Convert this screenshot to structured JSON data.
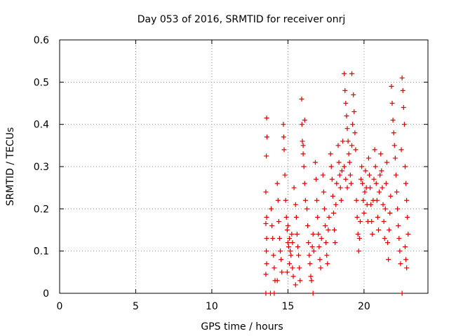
{
  "chart_data": {
    "type": "scatter",
    "title": "Day 053 of 2016, SRMTID for receiver onrj",
    "xlabel": "GPS time / hours",
    "ylabel": "SRMTID / TECUs",
    "xlim": [
      0,
      24.2
    ],
    "ylim": [
      0,
      0.6
    ],
    "x_ticks": [
      0,
      5,
      10,
      15,
      20
    ],
    "x_tick_labels": [
      "0",
      "5",
      "10",
      "15",
      "20"
    ],
    "y_ticks": [
      0,
      0.1,
      0.2,
      0.3,
      0.4,
      0.5,
      0.6
    ],
    "y_tick_labels": [
      "0",
      "0.1",
      "0.2",
      "0.3",
      "0.4",
      "0.5",
      "0.6"
    ],
    "grid": true,
    "marker": "+",
    "color": "#dd0000",
    "series": [
      {
        "name": "SRMTID",
        "points": [
          [
            13.55,
            0.0
          ],
          [
            13.85,
            0.0
          ],
          [
            14.1,
            0.0
          ],
          [
            16.65,
            0.0
          ],
          [
            22.5,
            0.0
          ],
          [
            13.6,
            0.415
          ],
          [
            13.62,
            0.37
          ],
          [
            13.58,
            0.325
          ],
          [
            13.55,
            0.24
          ],
          [
            13.6,
            0.18
          ],
          [
            13.55,
            0.165
          ],
          [
            13.6,
            0.13
          ],
          [
            13.58,
            0.1
          ],
          [
            13.6,
            0.07
          ],
          [
            13.55,
            0.045
          ],
          [
            13.9,
            0.2
          ],
          [
            13.95,
            0.16
          ],
          [
            14.0,
            0.13
          ],
          [
            14.05,
            0.09
          ],
          [
            14.1,
            0.06
          ],
          [
            14.15,
            0.03
          ],
          [
            14.3,
            0.26
          ],
          [
            14.35,
            0.22
          ],
          [
            14.4,
            0.17
          ],
          [
            14.45,
            0.13
          ],
          [
            14.5,
            0.1
          ],
          [
            14.55,
            0.08
          ],
          [
            14.6,
            0.05
          ],
          [
            14.3,
            0.03
          ],
          [
            14.7,
            0.4
          ],
          [
            14.72,
            0.37
          ],
          [
            14.75,
            0.34
          ],
          [
            14.8,
            0.28
          ],
          [
            14.85,
            0.22
          ],
          [
            14.9,
            0.18
          ],
          [
            14.95,
            0.15
          ],
          [
            15.0,
            0.12
          ],
          [
            15.05,
            0.11
          ],
          [
            15.1,
            0.13
          ],
          [
            15.15,
            0.1
          ],
          [
            15.2,
            0.09
          ],
          [
            15.25,
            0.14
          ],
          [
            15.3,
            0.06
          ],
          [
            15.35,
            0.04
          ],
          [
            15.1,
            0.07
          ],
          [
            14.95,
            0.05
          ],
          [
            15.3,
            0.12
          ],
          [
            15.0,
            0.16
          ],
          [
            15.4,
            0.25
          ],
          [
            15.5,
            0.21
          ],
          [
            15.55,
            0.18
          ],
          [
            15.6,
            0.14
          ],
          [
            15.65,
            0.11
          ],
          [
            15.7,
            0.09
          ],
          [
            15.75,
            0.06
          ],
          [
            15.8,
            0.03
          ],
          [
            15.5,
            0.02
          ],
          [
            15.9,
            0.46
          ],
          [
            15.92,
            0.4
          ],
          [
            15.95,
            0.36
          ],
          [
            16.0,
            0.33
          ],
          [
            16.05,
            0.3
          ],
          [
            16.1,
            0.26
          ],
          [
            16.15,
            0.22
          ],
          [
            16.0,
            0.35
          ],
          [
            16.1,
            0.41
          ],
          [
            16.25,
            0.2
          ],
          [
            16.3,
            0.16
          ],
          [
            16.35,
            0.12
          ],
          [
            16.4,
            0.09
          ],
          [
            16.45,
            0.07
          ],
          [
            16.5,
            0.04
          ],
          [
            16.55,
            0.03
          ],
          [
            16.6,
            0.11
          ],
          [
            16.65,
            0.14
          ],
          [
            16.7,
            0.1
          ],
          [
            16.8,
            0.31
          ],
          [
            16.85,
            0.27
          ],
          [
            16.9,
            0.22
          ],
          [
            16.95,
            0.18
          ],
          [
            17.0,
            0.14
          ],
          [
            17.05,
            0.11
          ],
          [
            17.1,
            0.08
          ],
          [
            17.15,
            0.06
          ],
          [
            17.2,
            0.13
          ],
          [
            17.3,
            0.28
          ],
          [
            17.35,
            0.24
          ],
          [
            17.4,
            0.2
          ],
          [
            17.45,
            0.16
          ],
          [
            17.5,
            0.12
          ],
          [
            17.55,
            0.09
          ],
          [
            17.6,
            0.07
          ],
          [
            17.65,
            0.15
          ],
          [
            17.7,
            0.18
          ],
          [
            17.8,
            0.33
          ],
          [
            17.85,
            0.3
          ],
          [
            17.9,
            0.27
          ],
          [
            17.95,
            0.23
          ],
          [
            18.0,
            0.19
          ],
          [
            18.05,
            0.15
          ],
          [
            18.1,
            0.12
          ],
          [
            18.15,
            0.21
          ],
          [
            18.2,
            0.26
          ],
          [
            18.3,
            0.35
          ],
          [
            18.35,
            0.31
          ],
          [
            18.4,
            0.28
          ],
          [
            18.45,
            0.25
          ],
          [
            18.5,
            0.22
          ],
          [
            18.55,
            0.29
          ],
          [
            18.6,
            0.36
          ],
          [
            18.7,
            0.52
          ],
          [
            18.75,
            0.48
          ],
          [
            18.8,
            0.45
          ],
          [
            18.85,
            0.42
          ],
          [
            18.9,
            0.39
          ],
          [
            18.95,
            0.36
          ],
          [
            19.0,
            0.33
          ],
          [
            18.7,
            0.3
          ],
          [
            18.8,
            0.27
          ],
          [
            18.9,
            0.25
          ],
          [
            19.05,
            0.31
          ],
          [
            19.1,
            0.28
          ],
          [
            19.15,
            0.26
          ],
          [
            19.2,
            0.35
          ],
          [
            19.25,
            0.4
          ],
          [
            19.3,
            0.47
          ],
          [
            19.35,
            0.43
          ],
          [
            19.4,
            0.38
          ],
          [
            19.45,
            0.34
          ],
          [
            19.2,
            0.52
          ],
          [
            19.5,
            0.22
          ],
          [
            19.55,
            0.18
          ],
          [
            19.6,
            0.14
          ],
          [
            19.65,
            0.1
          ],
          [
            19.7,
            0.13
          ],
          [
            19.75,
            0.17
          ],
          [
            19.8,
            0.27
          ],
          [
            19.85,
            0.3
          ],
          [
            19.9,
            0.26
          ],
          [
            19.95,
            0.22
          ],
          [
            20.0,
            0.19
          ],
          [
            20.05,
            0.24
          ],
          [
            20.1,
            0.29
          ],
          [
            20.15,
            0.25
          ],
          [
            20.2,
            0.21
          ],
          [
            20.25,
            0.17
          ],
          [
            20.3,
            0.32
          ],
          [
            20.35,
            0.28
          ],
          [
            20.4,
            0.25
          ],
          [
            20.45,
            0.21
          ],
          [
            20.5,
            0.17
          ],
          [
            20.55,
            0.14
          ],
          [
            20.6,
            0.22
          ],
          [
            20.65,
            0.27
          ],
          [
            20.7,
            0.34
          ],
          [
            20.75,
            0.3
          ],
          [
            20.8,
            0.26
          ],
          [
            20.85,
            0.22
          ],
          [
            20.9,
            0.18
          ],
          [
            20.95,
            0.15
          ],
          [
            21.0,
            0.24
          ],
          [
            21.05,
            0.28
          ],
          [
            21.1,
            0.33
          ],
          [
            21.15,
            0.29
          ],
          [
            21.2,
            0.25
          ],
          [
            21.25,
            0.21
          ],
          [
            21.3,
            0.17
          ],
          [
            21.35,
            0.13
          ],
          [
            21.4,
            0.2
          ],
          [
            21.45,
            0.26
          ],
          [
            21.5,
            0.31
          ],
          [
            21.55,
            0.12
          ],
          [
            21.6,
            0.08
          ],
          [
            21.65,
            0.15
          ],
          [
            21.7,
            0.19
          ],
          [
            21.75,
            0.23
          ],
          [
            21.8,
            0.49
          ],
          [
            21.85,
            0.45
          ],
          [
            21.9,
            0.41
          ],
          [
            21.95,
            0.38
          ],
          [
            22.0,
            0.35
          ],
          [
            22.05,
            0.32
          ],
          [
            22.1,
            0.28
          ],
          [
            22.15,
            0.24
          ],
          [
            22.2,
            0.2
          ],
          [
            22.25,
            0.16
          ],
          [
            22.3,
            0.13
          ],
          [
            22.35,
            0.1
          ],
          [
            22.4,
            0.07
          ],
          [
            22.45,
            0.34
          ],
          [
            22.5,
            0.51
          ],
          [
            22.55,
            0.48
          ],
          [
            22.6,
            0.44
          ],
          [
            22.65,
            0.4
          ],
          [
            22.7,
            0.3
          ],
          [
            22.75,
            0.26
          ],
          [
            22.8,
            0.22
          ],
          [
            22.85,
            0.18
          ],
          [
            22.9,
            0.14
          ],
          [
            22.7,
            0.11
          ],
          [
            22.75,
            0.08
          ],
          [
            22.8,
            0.06
          ]
        ]
      }
    ]
  }
}
